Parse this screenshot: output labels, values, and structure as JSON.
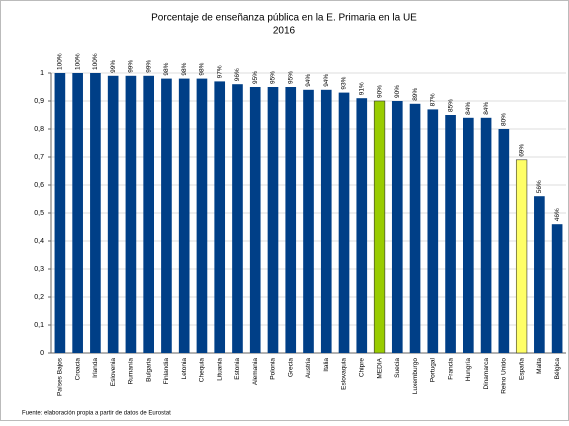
{
  "chart_data": {
    "type": "bar",
    "title": "Porcentaje de enseñanza pública en la E. Primaria en la UE",
    "subtitle": "2016",
    "categories": [
      "Países Bajos",
      "Croacia",
      "Irlanda",
      "Eslovenia",
      "Rumanía",
      "Bulgaria",
      "Finlandia",
      "Letonia",
      "Chequia",
      "Lituania",
      "Estonia",
      "Alemania",
      "Polonia",
      "Grecia",
      "Austria",
      "Italia",
      "Eslovaquia",
      "Chipre",
      "MEDIA",
      "Suecia",
      "Luxemburgo",
      "Portugal",
      "Francia",
      "Hungría",
      "Dinamarca",
      "Reino Unido",
      "España",
      "Malta",
      "Bélgica"
    ],
    "values": [
      1.0,
      1.0,
      1.0,
      0.99,
      0.99,
      0.99,
      0.98,
      0.98,
      0.98,
      0.97,
      0.96,
      0.95,
      0.95,
      0.95,
      0.94,
      0.94,
      0.93,
      0.91,
      0.9,
      0.9,
      0.89,
      0.87,
      0.85,
      0.84,
      0.84,
      0.8,
      0.69,
      0.56,
      0.46
    ],
    "value_labels": [
      "100%",
      "100%",
      "100%",
      "99%",
      "99%",
      "99%",
      "98%",
      "98%",
      "98%",
      "97%",
      "96%",
      "95%",
      "95%",
      "95%",
      "94%",
      "94%",
      "93%",
      "91%",
      "90%",
      "90%",
      "89%",
      "87%",
      "85%",
      "84%",
      "84%",
      "80%",
      "69%",
      "56%",
      "46%"
    ],
    "colors": [
      "#003f87",
      "#003f87",
      "#003f87",
      "#003f87",
      "#003f87",
      "#003f87",
      "#003f87",
      "#003f87",
      "#003f87",
      "#003f87",
      "#003f87",
      "#003f87",
      "#003f87",
      "#003f87",
      "#003f87",
      "#003f87",
      "#003f87",
      "#003f87",
      "#99cc00",
      "#003f87",
      "#003f87",
      "#003f87",
      "#003f87",
      "#003f87",
      "#003f87",
      "#003f87",
      "#ffff66",
      "#003f87",
      "#003f87"
    ],
    "ylim": [
      0,
      1
    ],
    "yticks": [
      0,
      {
        "value": 0.1,
        "label": "0,1"
      },
      {
        "value": 0.2,
        "label": "0,2"
      },
      {
        "value": 0.3,
        "label": "0,3"
      },
      {
        "value": 0.4,
        "label": "0,4"
      },
      {
        "value": 0.5,
        "label": "0,5"
      },
      {
        "value": 0.6,
        "label": "0,6"
      },
      {
        "value": 0.7,
        "label": "0,7"
      },
      {
        "value": 0.8,
        "label": "0,8"
      },
      {
        "value": 0.9,
        "label": "0,9"
      },
      1
    ],
    "grid": true,
    "source": "Fuente: elaboración propia a partir de datos de Eurostat"
  }
}
